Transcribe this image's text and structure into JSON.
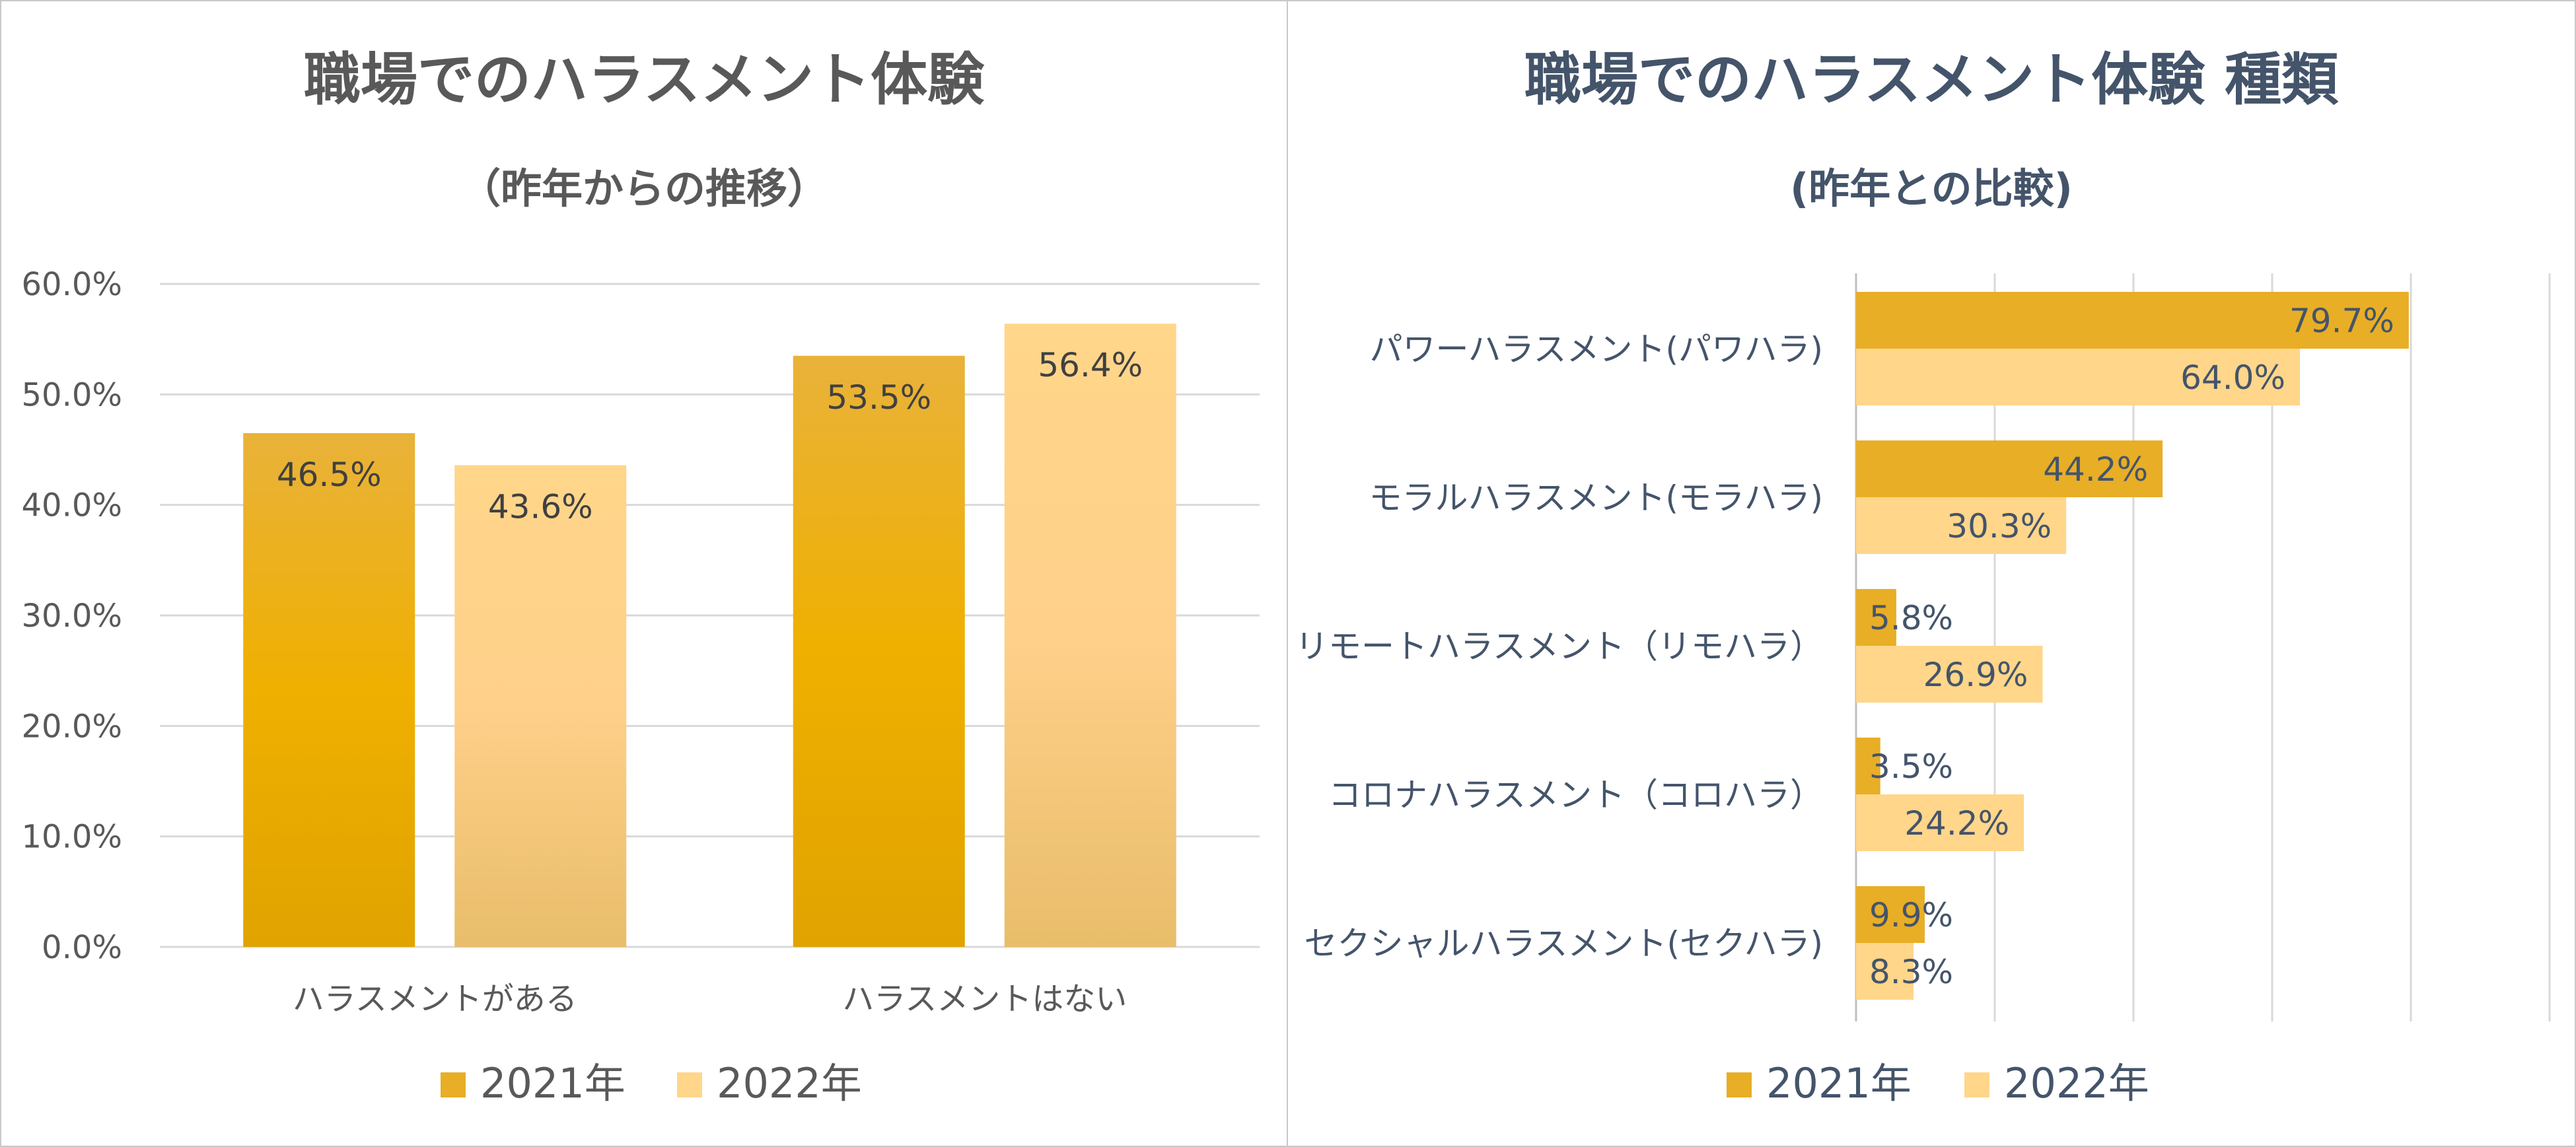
{
  "colors": {
    "y2021": "#e8ae26",
    "y2022": "#ffd68a",
    "grid": "#d9d9d9",
    "title_left": "#595959",
    "title_right": "#44546a"
  },
  "legend": [
    "2021年",
    "2022年"
  ],
  "chart_data": [
    {
      "type": "bar",
      "title": "職場でのハラスメント体験",
      "subtitle": "（昨年からの推移）",
      "categories": [
        "ハラスメントがある",
        "ハラスメントはない"
      ],
      "series": [
        {
          "name": "2021年",
          "values": [
            46.5,
            53.5
          ],
          "labels": [
            "46.5%",
            "53.5%"
          ]
        },
        {
          "name": "2022年",
          "values": [
            43.6,
            56.4
          ],
          "labels": [
            "43.6%",
            "56.4%"
          ]
        }
      ],
      "ylim": [
        0,
        60
      ],
      "yticks": [
        "0.0%",
        "10.0%",
        "20.0%",
        "30.0%",
        "40.0%",
        "50.0%",
        "60.0%"
      ],
      "xlabel": "",
      "ylabel": "",
      "grid": true,
      "legend_position": "bottom"
    },
    {
      "type": "bar",
      "orientation": "horizontal",
      "title": "職場でのハラスメント体験 種類",
      "subtitle": "(昨年との比較)",
      "categories": [
        "パワーハラスメント(パワハラ)",
        "モラルハラスメント(モラハラ)",
        "リモートハラスメント（リモハラ）",
        "コロナハラスメント（コロハラ）",
        "セクシャルハラスメント(セクハラ)"
      ],
      "series": [
        {
          "name": "2021年",
          "values": [
            79.7,
            44.2,
            5.8,
            3.5,
            9.9
          ],
          "labels": [
            "79.7%",
            "44.2%",
            "5.8%",
            "3.5%",
            "9.9%"
          ]
        },
        {
          "name": "2022年",
          "values": [
            64.0,
            30.3,
            26.9,
            24.2,
            8.3
          ],
          "labels": [
            "64.0%",
            "30.3%",
            "26.9%",
            "24.2%",
            "8.3%"
          ]
        }
      ],
      "xlim": [
        0,
        100
      ],
      "grid": true,
      "legend_position": "bottom"
    }
  ]
}
